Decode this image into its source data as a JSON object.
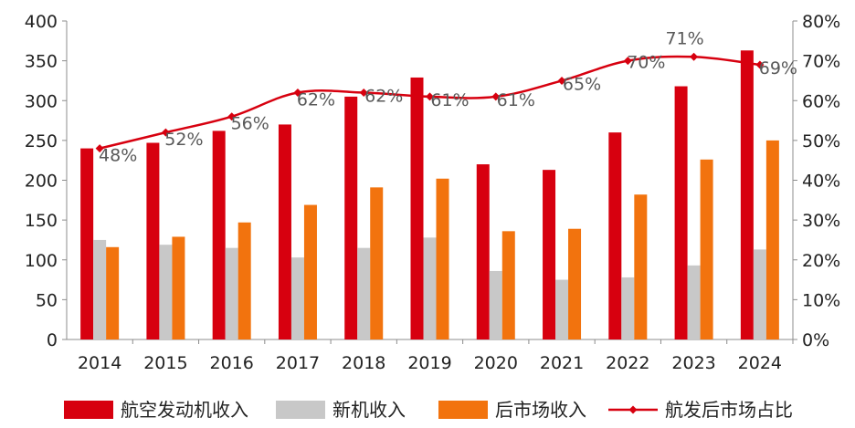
{
  "chart_data": {
    "type": "bar",
    "categories": [
      "2014",
      "2015",
      "2016",
      "2017",
      "2018",
      "2019",
      "2020",
      "2021",
      "2022",
      "2023",
      "2024"
    ],
    "series": [
      {
        "name": "航空发动机收入",
        "kind": "bar",
        "axis": "left",
        "color": "#D7000F",
        "values": [
          240,
          247,
          262,
          270,
          305,
          329,
          220,
          213,
          260,
          318,
          363
        ]
      },
      {
        "name": "新机收入",
        "kind": "bar",
        "axis": "left",
        "color": "#C8C8C8",
        "values": [
          125,
          119,
          115,
          103,
          115,
          128,
          86,
          75,
          78,
          93,
          113
        ]
      },
      {
        "name": "后市场收入",
        "kind": "bar",
        "axis": "left",
        "color": "#F2730E",
        "values": [
          116,
          129,
          147,
          169,
          191,
          202,
          136,
          139,
          182,
          226,
          250
        ]
      },
      {
        "name": "航发后市场占比",
        "kind": "line",
        "axis": "right",
        "color": "#D7000F",
        "values": [
          48,
          52,
          56,
          62,
          62,
          61,
          61,
          65,
          70,
          71,
          69
        ],
        "labels": [
          "48%",
          "52%",
          "56%",
          "62%",
          "62%",
          "61%",
          "61%",
          "65%",
          "70%",
          "71%",
          "69%"
        ]
      }
    ],
    "yLeft": {
      "min": 0,
      "max": 400,
      "step": 50,
      "ticks": [
        "0",
        "50",
        "100",
        "150",
        "200",
        "250",
        "300",
        "350",
        "400"
      ]
    },
    "yRight": {
      "min": 0,
      "max": 80,
      "step": 10,
      "ticks": [
        "0%",
        "10%",
        "20%",
        "30%",
        "40%",
        "50%",
        "60%",
        "70%",
        "80%"
      ]
    },
    "grid": false,
    "legend": "bottom"
  }
}
